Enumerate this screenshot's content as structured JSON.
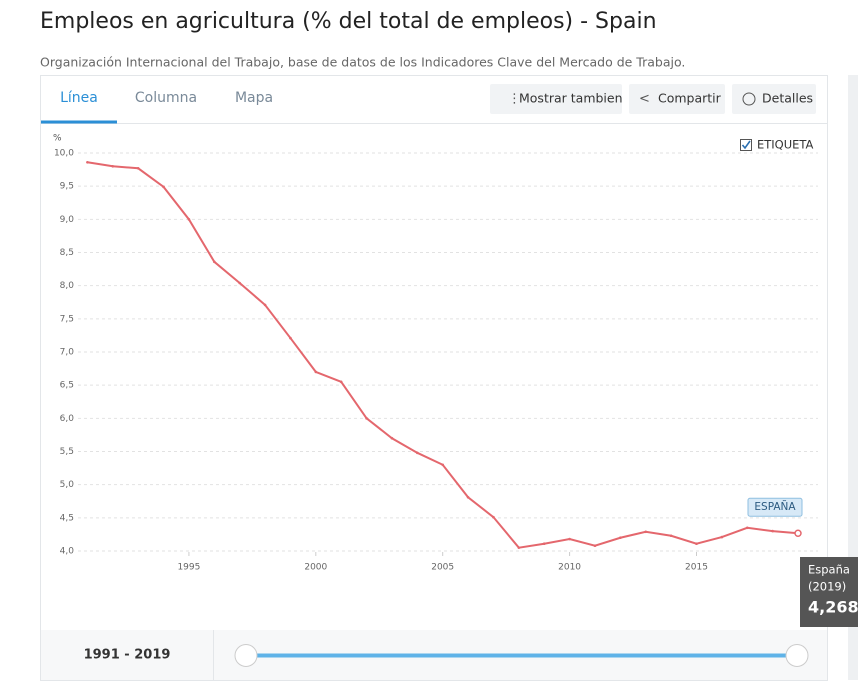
{
  "chart_data": {
    "type": "line",
    "title": "Empleos en agricultura (% del total de empleos) - Spain",
    "subtitle": "Organización Internacional del Trabajo, base de datos de los Indicadores Clave del Mercado de Trabajo.",
    "y_unit": "%",
    "x": [
      1991,
      1992,
      1993,
      1994,
      1995,
      1996,
      1997,
      1998,
      1999,
      2000,
      2001,
      2002,
      2003,
      2004,
      2005,
      2006,
      2007,
      2008,
      2009,
      2010,
      2011,
      2012,
      2013,
      2014,
      2015,
      2016,
      2017,
      2018,
      2019
    ],
    "series": [
      {
        "name": "ESPAÑA",
        "color": "#e4676d",
        "values": [
          9.86,
          9.8,
          9.77,
          9.49,
          9.0,
          8.36,
          8.04,
          7.71,
          7.21,
          6.7,
          6.55,
          6.0,
          5.7,
          5.48,
          5.3,
          4.81,
          4.51,
          4.05,
          4.11,
          4.18,
          4.08,
          4.2,
          4.29,
          4.23,
          4.11,
          4.21,
          4.35,
          4.3,
          4.268
        ],
        "value_labels": [
          null,
          null,
          null,
          null,
          null,
          null,
          null,
          null,
          null,
          null,
          null,
          null,
          null,
          null,
          null,
          null,
          null,
          null,
          null,
          null,
          null,
          null,
          null,
          null,
          null,
          null,
          null,
          null,
          "4,268"
        ]
      }
    ],
    "tooltip_name": "España",
    "tooltip_period": "(2019)",
    "xlim": [
      1991,
      2019
    ],
    "xticks": [
      1995,
      2000,
      2005,
      2010,
      2015
    ],
    "ylim": [
      4.0,
      10.0
    ],
    "yticks": [
      {
        "value": 4.0,
        "label": "4,0"
      },
      {
        "value": 4.5,
        "label": "4,5"
      },
      {
        "value": 5.0,
        "label": "5,0"
      },
      {
        "value": 5.5,
        "label": "5,5"
      },
      {
        "value": 6.0,
        "label": "6,0"
      },
      {
        "value": 6.5,
        "label": "6,5"
      },
      {
        "value": 7.0,
        "label": "7,0"
      },
      {
        "value": 7.5,
        "label": "7,5"
      },
      {
        "value": 8.0,
        "label": "8,0"
      },
      {
        "value": 8.5,
        "label": "8,5"
      },
      {
        "value": 9.0,
        "label": "9,0"
      },
      {
        "value": 9.5,
        "label": "9,5"
      },
      {
        "value": 10.0,
        "label": "10,0"
      }
    ],
    "grid": true
  },
  "ui": {
    "tabs": [
      "Línea",
      "Columna",
      "Mapa"
    ],
    "buttons": [
      "Mostrar tambien",
      "Compartir",
      "Detalles"
    ],
    "label_checkbox": "ETIQUETA",
    "range": "1991 - 2019"
  }
}
